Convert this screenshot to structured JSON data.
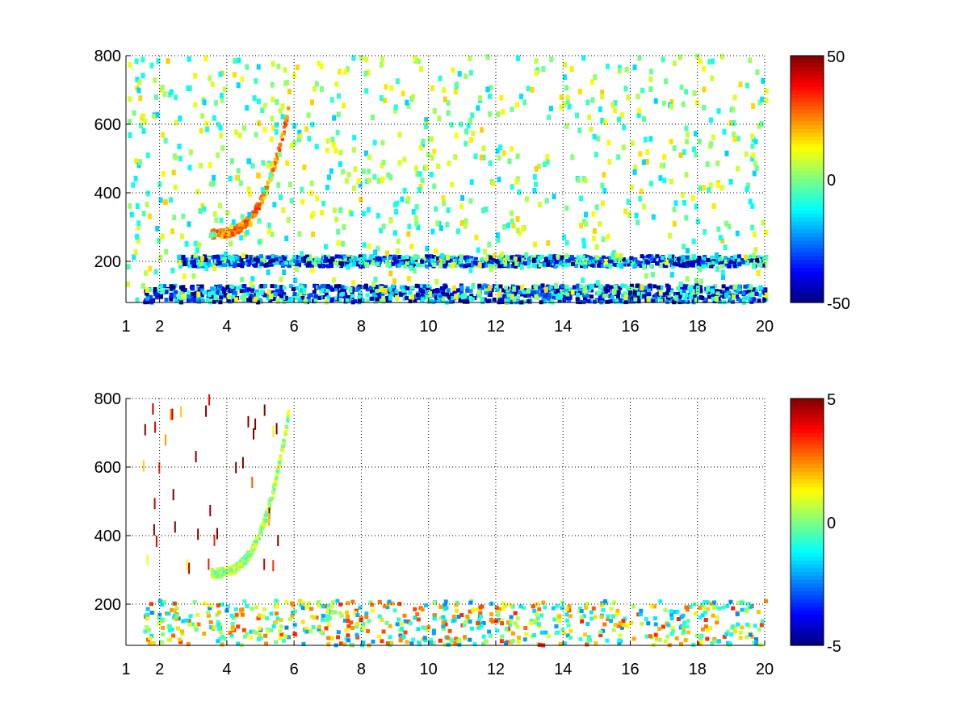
{
  "chart_data": [
    {
      "type": "heatmap",
      "title": "",
      "xlabel": "",
      "ylabel": "",
      "xlim": [
        1,
        20
      ],
      "ylim": [
        80,
        800
      ],
      "x_ticks": [
        "1",
        "2",
        "4",
        "6",
        "8",
        "10",
        "12",
        "14",
        "16",
        "18",
        "20"
      ],
      "x_tick_values": [
        1,
        2,
        4,
        6,
        8,
        10,
        12,
        14,
        16,
        18,
        20
      ],
      "y_ticks": [
        "200",
        "400",
        "600",
        "800"
      ],
      "y_tick_values": [
        200,
        400,
        600,
        800
      ],
      "grid": true,
      "colormap": "jet",
      "clim": [
        -50,
        50
      ],
      "colorbar_ticks": [
        "50",
        "0",
        "-50"
      ],
      "colorbar_tick_values": [
        50,
        0,
        -50
      ],
      "features": [
        {
          "kind": "low-frequency band",
          "x": [
            1.5,
            20
          ],
          "y": [
            80,
            130
          ],
          "value": -30
        },
        {
          "kind": "band near 200",
          "x": [
            2.5,
            20
          ],
          "y": [
            185,
            215
          ],
          "value": -25
        },
        {
          "kind": "curved ridge",
          "x": [
            3.5,
            5.8
          ],
          "y": [
            280,
            650
          ],
          "value": 25
        },
        {
          "kind": "scattered speckle",
          "x": [
            1,
            20
          ],
          "y": [
            80,
            800
          ],
          "value": 0
        }
      ]
    },
    {
      "type": "heatmap",
      "title": "",
      "xlabel": "",
      "ylabel": "",
      "xlim": [
        1,
        20
      ],
      "ylim": [
        80,
        800
      ],
      "x_ticks": [
        "1",
        "2",
        "4",
        "6",
        "8",
        "10",
        "12",
        "14",
        "16",
        "18",
        "20"
      ],
      "x_tick_values": [
        1,
        2,
        4,
        6,
        8,
        10,
        12,
        14,
        16,
        18,
        20
      ],
      "y_ticks": [
        "200",
        "400",
        "600",
        "800"
      ],
      "y_tick_values": [
        200,
        400,
        600,
        800
      ],
      "grid": true,
      "colormap": "jet",
      "clim": [
        -5,
        5
      ],
      "colorbar_ticks": [
        "5",
        "0",
        "-5"
      ],
      "colorbar_tick_values": [
        5,
        0,
        -5
      ],
      "features": [
        {
          "kind": "low-frequency band",
          "x": [
            1.5,
            20
          ],
          "y": [
            80,
            210
          ],
          "value": 0.5
        },
        {
          "kind": "curved ridge",
          "x": [
            3.5,
            5.8
          ],
          "y": [
            290,
            760
          ],
          "value": 0.3
        },
        {
          "kind": "sparse outliers",
          "x": [
            1.5,
            5.5
          ],
          "y": [
            300,
            800
          ],
          "value": 4
        }
      ]
    }
  ]
}
